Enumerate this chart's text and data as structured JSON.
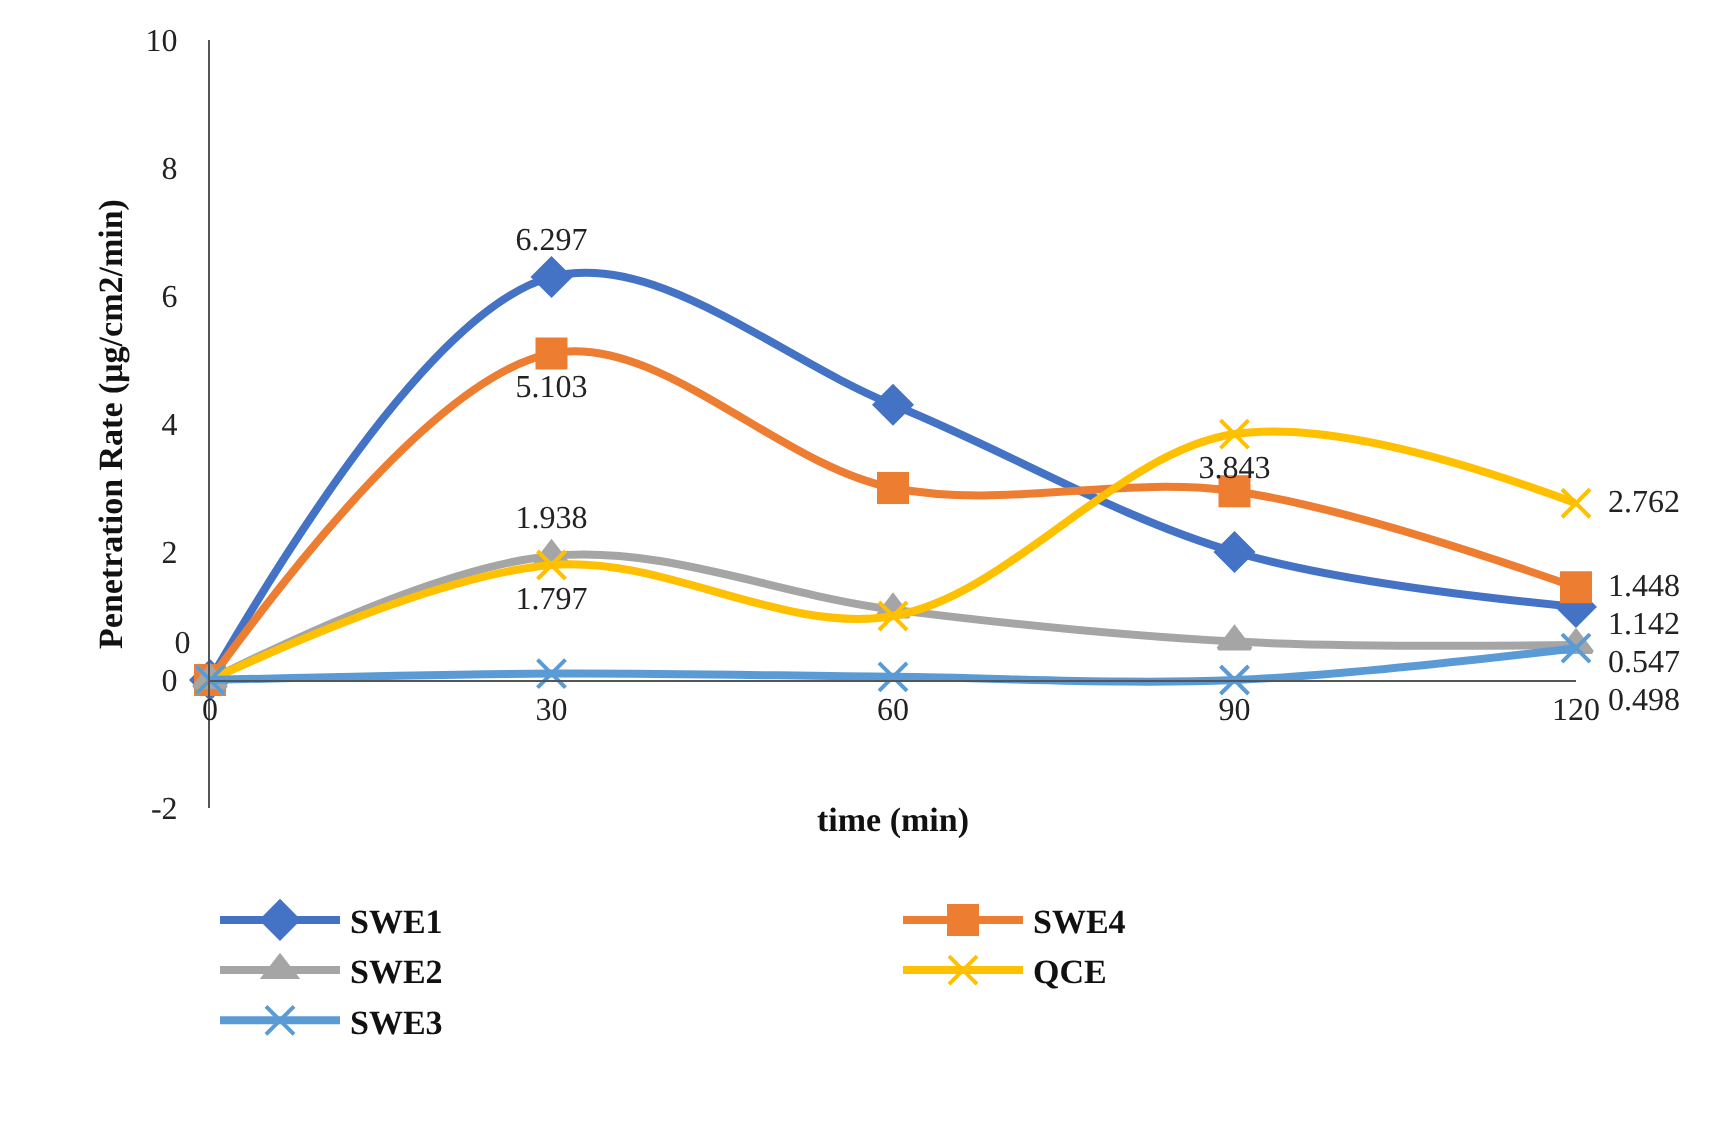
{
  "chart_data": {
    "type": "line",
    "xlabel": "time (min)",
    "ylabel": "Penetration Rate (μg/cm2/min)",
    "x": [
      0,
      30,
      60,
      90,
      120
    ],
    "xlim": [
      0,
      120
    ],
    "xticks": [
      0,
      30,
      60,
      90,
      120
    ],
    "ylim": [
      -2,
      10
    ],
    "yticks": [
      -2,
      0,
      2,
      4,
      6,
      8,
      10
    ],
    "grid": false,
    "legend": "bottom",
    "series": [
      {
        "name": "SWE1",
        "color": "#4472c4",
        "marker": "diamond",
        "values": [
          0,
          6.297,
          4.3,
          2.0,
          1.142
        ],
        "value_labels": [
          "0",
          "6.297",
          null,
          null,
          "1.142"
        ]
      },
      {
        "name": "SWE4",
        "color": "#ed7d31",
        "marker": "square",
        "values": [
          0,
          5.103,
          3.0,
          2.95,
          1.448
        ],
        "value_labels": [
          null,
          "5.103",
          null,
          null,
          "1.448"
        ]
      },
      {
        "name": "SWE2",
        "color": "#a5a5a5",
        "marker": "triangle",
        "values": [
          0,
          1.938,
          1.1,
          0.6,
          0.547
        ],
        "value_labels": [
          null,
          "1.938",
          null,
          null,
          "0.547"
        ]
      },
      {
        "name": "QCE",
        "color": "#ffc000",
        "marker": "cross",
        "values": [
          0,
          1.797,
          1.0,
          3.843,
          2.762
        ],
        "value_labels": [
          null,
          "1.797",
          null,
          "3.843",
          "2.762"
        ]
      },
      {
        "name": "SWE3",
        "color": "#5b9bd5",
        "marker": "cross",
        "values": [
          0,
          0.1,
          0.05,
          0.0,
          0.498
        ],
        "value_labels": [
          null,
          null,
          null,
          null,
          "0.498"
        ]
      }
    ]
  }
}
